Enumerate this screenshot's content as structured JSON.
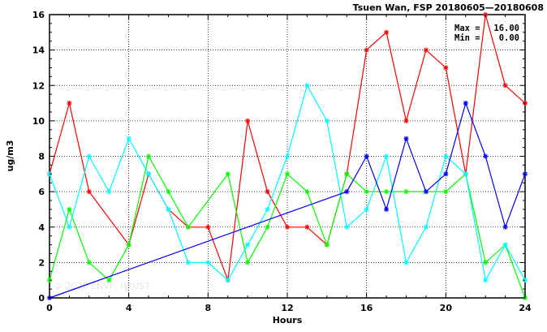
{
  "chart_data": {
    "type": "line",
    "title": "Tsuen Wan, FSP 20180605—20180608",
    "xlabel": "Hours",
    "ylabel": "ug/m3",
    "xlim": [
      0,
      24
    ],
    "ylim": [
      0,
      16
    ],
    "xticks": [
      0,
      4,
      8,
      12,
      16,
      20,
      24
    ],
    "yticks": [
      0,
      2,
      4,
      6,
      8,
      10,
      12,
      14,
      16
    ],
    "grid": true,
    "stats": {
      "max_label": "Max =",
      "max_value": "16.00",
      "min_label": "Min =",
      "min_value": "0.00"
    },
    "watermark": "© 2020 ENVF, HKUST",
    "series": [
      {
        "color": "#ff0000",
        "x": [
          0,
          1,
          2,
          4,
          5,
          6,
          7,
          8,
          9,
          10,
          11,
          12,
          13,
          14,
          15,
          16,
          17,
          18,
          19,
          20,
          21,
          22,
          23,
          24
        ],
        "y": [
          7,
          11,
          6,
          3,
          7,
          5,
          4,
          4,
          1,
          10,
          6,
          4,
          4,
          3,
          7,
          14,
          15,
          10,
          14,
          13,
          7,
          16,
          12,
          11
        ]
      },
      {
        "color": "#00ff00",
        "x": [
          0,
          1,
          2,
          3,
          4,
          5,
          6,
          7,
          9,
          10,
          11,
          12,
          13,
          14,
          15,
          16,
          17,
          18,
          19,
          20,
          21,
          22,
          23,
          24
        ],
        "y": [
          1,
          5,
          2,
          1,
          3,
          8,
          6,
          4,
          7,
          2,
          4,
          7,
          6,
          3,
          7,
          6,
          6,
          6,
          6,
          6,
          7,
          2,
          3,
          0
        ]
      },
      {
        "color": "#00ffff",
        "x": [
          0,
          1,
          2,
          3,
          4,
          5,
          6,
          7,
          8,
          9,
          10,
          11,
          12,
          13,
          14,
          15,
          16,
          17,
          18,
          19,
          20,
          21,
          22,
          23,
          24
        ],
        "y": [
          7,
          4,
          8,
          6,
          9,
          7,
          5,
          2,
          2,
          1,
          3,
          5,
          8,
          12,
          10,
          4,
          5,
          8,
          2,
          4,
          8,
          7,
          1,
          3,
          1
        ]
      },
      {
        "color": "#0000ff",
        "x": [
          0,
          15,
          16,
          17,
          18,
          19,
          20,
          21,
          22,
          23,
          24
        ],
        "y": [
          0,
          6,
          8,
          5,
          9,
          6,
          7,
          11,
          8,
          4,
          7
        ]
      }
    ]
  }
}
